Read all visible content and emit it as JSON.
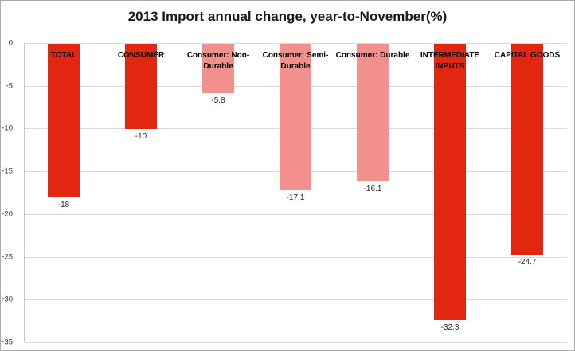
{
  "title": "2013 Import annual change, year-to-November(%)",
  "chart_data": {
    "type": "bar",
    "title": "2013 Import annual change, year-to-November(%)",
    "categories": [
      "TOTAL",
      "CONSUMER",
      "Consumer: Non-Durable",
      "Consumer: Semi-Durable",
      "Consumer: Durable",
      "INTERMEDIATE INPUTS",
      "CAPITAL GOODS"
    ],
    "values": [
      -18,
      -10,
      -5.8,
      -17.1,
      -16.1,
      -32.3,
      -24.7
    ],
    "data_labels": [
      "-18",
      "-10",
      "-5.8",
      "-17.1",
      "-16.1",
      "-32.3",
      "-24.7"
    ],
    "bar_styles": [
      "strong",
      "strong",
      "light",
      "light",
      "light",
      "strong",
      "strong"
    ],
    "colors": {
      "strong": "#E3260F",
      "light": "#F1908C"
    },
    "xlabel": "",
    "ylabel": "",
    "ylim": [
      -35,
      0
    ],
    "yticks": [
      0,
      -5,
      -10,
      -15,
      -20,
      -25,
      -30,
      -35
    ],
    "grid": "horizontal",
    "legend": "none",
    "orientation": "vertical",
    "background": "#FFFFFF"
  }
}
